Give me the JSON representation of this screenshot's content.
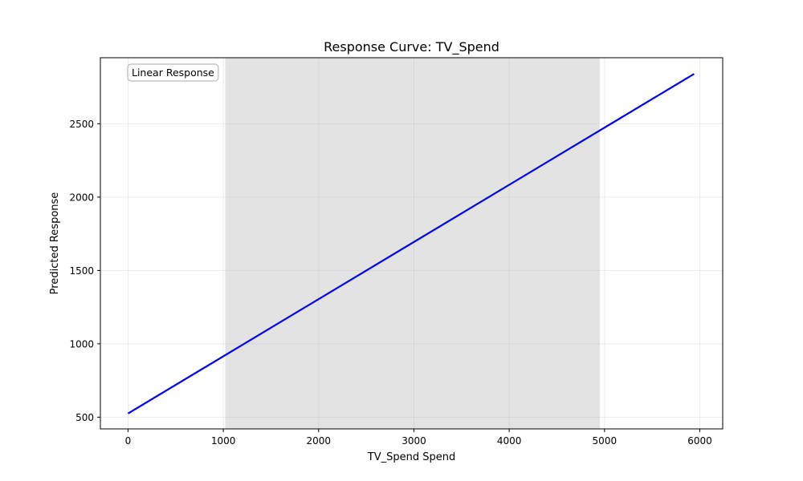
{
  "chart_data": {
    "type": "line",
    "title": "Response Curve: TV_Spend",
    "xlabel": "TV_Spend Spend",
    "ylabel": "Predicted Response",
    "xlim": [
      -290,
      6240
    ],
    "ylim": [
      420,
      2950
    ],
    "xticks": [
      0,
      1000,
      2000,
      3000,
      4000,
      5000,
      6000
    ],
    "yticks": [
      500,
      1000,
      1500,
      2000,
      2500
    ],
    "grid": true,
    "shaded_region": {
      "x_start": 1020,
      "x_end": 4950,
      "color": "#e3e3e3"
    },
    "series": [
      {
        "x": [
          0,
          5940
        ],
        "y": [
          525,
          2840
        ],
        "color": "#0000ee"
      }
    ],
    "annotation": {
      "text": "Linear Response",
      "position": "top-left"
    }
  }
}
